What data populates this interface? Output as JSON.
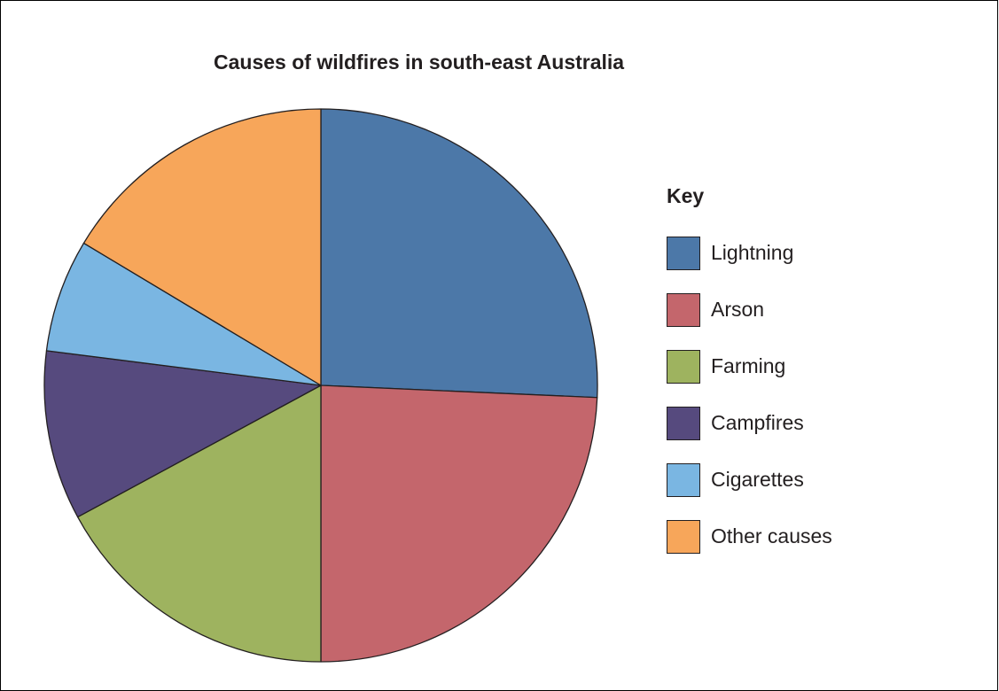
{
  "chart_data": {
    "type": "pie",
    "title": "Causes of wildfires in south-east Australia",
    "legend_title": "Key",
    "legend_position": "right",
    "start": "top (12 o'clock)",
    "direction": "clockwise",
    "slices": [
      {
        "label": "Lightning",
        "value": 25.7,
        "color": "#4c78a8"
      },
      {
        "label": "Arson",
        "value": 24.3,
        "color": "#c4666c"
      },
      {
        "label": "Farming",
        "value": 17.1,
        "color": "#9eb35f"
      },
      {
        "label": "Campfires",
        "value": 9.9,
        "color": "#564a7e"
      },
      {
        "label": "Cigarettes",
        "value": 6.6,
        "color": "#7ab6e2"
      },
      {
        "label": "Other causes",
        "value": 16.4,
        "color": "#f7a65a"
      }
    ]
  }
}
